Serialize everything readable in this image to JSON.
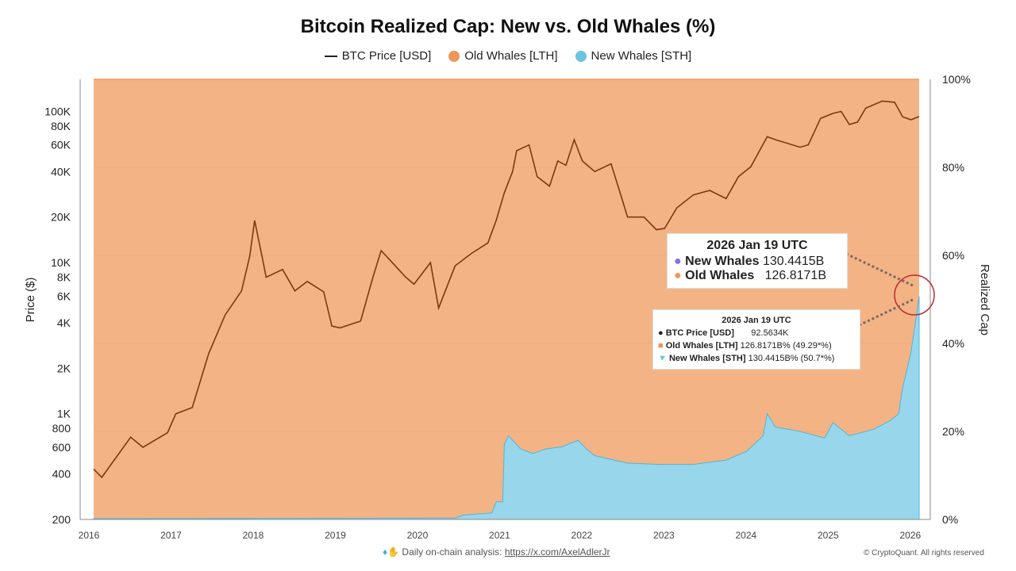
{
  "chart_data": {
    "type": "area",
    "title": "Bitcoin Realized Cap: New vs. Old Whales (%)",
    "legend": [
      "BTC Price [USD]",
      "Old Whales [LTH]",
      "New Whales [STH]"
    ],
    "legend_placement": "top",
    "colors": {
      "price": "#7a3b10",
      "old": "#f4b384",
      "old_legend": "#f0965a",
      "new": "#98d6eb",
      "new_legend": "#6cc4e0"
    },
    "x_ticks": [
      "2016",
      "2017",
      "2018",
      "2019",
      "2020",
      "2021",
      "2022",
      "2023",
      "2024",
      "2025",
      "2026"
    ],
    "xlim": [
      2016.0,
      2026.05
    ],
    "left_axis": {
      "label": "Price ($)",
      "scale": "log",
      "range": [
        200,
        163000
      ],
      "ticks": [
        200,
        400,
        600,
        800,
        1000,
        2000,
        4000,
        6000,
        8000,
        10000,
        20000,
        40000,
        60000,
        80000,
        100000
      ],
      "tick_labels": [
        "200",
        "400",
        "600",
        "800",
        "1K",
        "2K",
        "4K",
        "6K",
        "8K",
        "10K",
        "20K",
        "40K",
        "60K",
        "80K",
        "100K"
      ]
    },
    "right_axis": {
      "label": "Realized Cap",
      "range": [
        0,
        100
      ],
      "ticks": [
        0,
        20,
        40,
        60,
        80,
        100
      ],
      "tick_labels": [
        "0%",
        "20%",
        "40%",
        "60%",
        "80%",
        "100%"
      ]
    },
    "price_series": [
      [
        2016.0,
        430
      ],
      [
        2016.1,
        380
      ],
      [
        2016.45,
        700
      ],
      [
        2016.6,
        600
      ],
      [
        2016.9,
        750
      ],
      [
        2017.0,
        1000
      ],
      [
        2017.2,
        1100
      ],
      [
        2017.4,
        2500
      ],
      [
        2017.6,
        4500
      ],
      [
        2017.8,
        6500
      ],
      [
        2017.9,
        11000
      ],
      [
        2017.96,
        19000
      ],
      [
        2018.05,
        11000
      ],
      [
        2018.1,
        8000
      ],
      [
        2018.3,
        9000
      ],
      [
        2018.45,
        6500
      ],
      [
        2018.6,
        7500
      ],
      [
        2018.8,
        6400
      ],
      [
        2018.9,
        3800
      ],
      [
        2019.0,
        3700
      ],
      [
        2019.25,
        4100
      ],
      [
        2019.4,
        8000
      ],
      [
        2019.5,
        12000
      ],
      [
        2019.6,
        10500
      ],
      [
        2019.8,
        8000
      ],
      [
        2019.9,
        7200
      ],
      [
        2020.1,
        10000
      ],
      [
        2020.2,
        5000
      ],
      [
        2020.4,
        9500
      ],
      [
        2020.6,
        11500
      ],
      [
        2020.8,
        13500
      ],
      [
        2020.9,
        19000
      ],
      [
        2021.0,
        29000
      ],
      [
        2021.1,
        40000
      ],
      [
        2021.15,
        55000
      ],
      [
        2021.3,
        60000
      ],
      [
        2021.4,
        37000
      ],
      [
        2021.55,
        32000
      ],
      [
        2021.65,
        47000
      ],
      [
        2021.75,
        44000
      ],
      [
        2021.85,
        65000
      ],
      [
        2021.95,
        47000
      ],
      [
        2022.1,
        40000
      ],
      [
        2022.3,
        45000
      ],
      [
        2022.4,
        30000
      ],
      [
        2022.5,
        20000
      ],
      [
        2022.7,
        20000
      ],
      [
        2022.85,
        16500
      ],
      [
        2022.95,
        16800
      ],
      [
        2023.1,
        23000
      ],
      [
        2023.3,
        28000
      ],
      [
        2023.5,
        30000
      ],
      [
        2023.7,
        26500
      ],
      [
        2023.85,
        37000
      ],
      [
        2024.0,
        43000
      ],
      [
        2024.2,
        68000
      ],
      [
        2024.3,
        65000
      ],
      [
        2024.6,
        58000
      ],
      [
        2024.7,
        60000
      ],
      [
        2024.85,
        90000
      ],
      [
        2025.0,
        97000
      ],
      [
        2025.1,
        100000
      ],
      [
        2025.2,
        82000
      ],
      [
        2025.3,
        85000
      ],
      [
        2025.4,
        105000
      ],
      [
        2025.6,
        117000
      ],
      [
        2025.75,
        115000
      ],
      [
        2025.85,
        92000
      ],
      [
        2025.95,
        88000
      ],
      [
        2026.05,
        92563
      ]
    ],
    "new_whales_pct": [
      [
        2016.0,
        0.2
      ],
      [
        2020.4,
        0.3
      ],
      [
        2020.5,
        1
      ],
      [
        2020.85,
        1.5
      ],
      [
        2020.9,
        4
      ],
      [
        2020.98,
        4
      ],
      [
        2021.0,
        17
      ],
      [
        2021.05,
        19
      ],
      [
        2021.2,
        16
      ],
      [
        2021.35,
        15
      ],
      [
        2021.5,
        16
      ],
      [
        2021.7,
        16.5
      ],
      [
        2021.9,
        18
      ],
      [
        2022.0,
        16
      ],
      [
        2022.1,
        14.5
      ],
      [
        2022.5,
        12.8
      ],
      [
        2022.9,
        12.5
      ],
      [
        2023.3,
        12.5
      ],
      [
        2023.7,
        13.5
      ],
      [
        2023.95,
        15.5
      ],
      [
        2024.15,
        19
      ],
      [
        2024.2,
        24
      ],
      [
        2024.3,
        21
      ],
      [
        2024.6,
        20
      ],
      [
        2024.9,
        18.5
      ],
      [
        2025.0,
        22
      ],
      [
        2025.2,
        19
      ],
      [
        2025.5,
        20.5
      ],
      [
        2025.7,
        22.5
      ],
      [
        2025.8,
        24
      ],
      [
        2025.85,
        30
      ],
      [
        2025.95,
        38
      ],
      [
        2026.05,
        50.7
      ]
    ]
  },
  "tooltip_large": {
    "date": "2026 Jan 19 UTC",
    "new_label": "New Whales",
    "new_value": "130.4415B",
    "old_label": "Old Whales",
    "old_value": "126.8171B"
  },
  "tooltip_small": {
    "date": "2026 Jan 19 UTC",
    "price_label": "BTC Price [USD]",
    "price_value": "92.5634K",
    "old_label": "Old Whales [LTH]",
    "old_value": "126.8171B% (49.29*%)",
    "new_label": "New Whales [STH]",
    "new_value": "130.4415B% (50.7*%)"
  },
  "watermark": "CryptoQuant",
  "footer": {
    "text": "Daily on-chain analysis: ",
    "link": "https://x.com/AxelAdlerJr",
    "copyright": "© CryptoQuant. All rights reserved"
  }
}
